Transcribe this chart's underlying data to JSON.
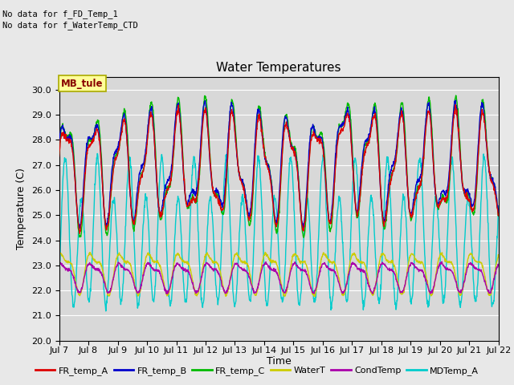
{
  "title": "Water Temperatures",
  "ylabel": "Temperature (C)",
  "xlabel": "Time",
  "x_tick_labels": [
    "Jul 7",
    "Jul 8",
    "Jul 9",
    "Jul 10",
    "Jul 11",
    "Jul 12",
    "Jul 13",
    "Jul 14",
    "Jul 15",
    "Jul 16",
    "Jul 17",
    "Jul 18",
    "Jul 19",
    "Jul 20",
    "Jul 21",
    "Jul 22"
  ],
  "ylim": [
    20.0,
    30.5
  ],
  "yticks": [
    20.0,
    21.0,
    22.0,
    23.0,
    24.0,
    25.0,
    26.0,
    27.0,
    28.0,
    29.0,
    30.0
  ],
  "background_color": "#d8d8d8",
  "fig_background": "#e8e8e8",
  "annotation_lines": [
    "No data for f_FD_Temp_1",
    "No data for f_WaterTemp_CTD"
  ],
  "mb_tule_label": "MB_tule",
  "legend_entries": [
    "FR_temp_A",
    "FR_temp_B",
    "FR_temp_C",
    "WaterT",
    "CondTemp",
    "MDTemp_A"
  ],
  "line_colors": [
    "#dd0000",
    "#0000cc",
    "#00bb00",
    "#cccc00",
    "#aa00aa",
    "#00cccc"
  ],
  "n_days": 15,
  "points_per_day": 96
}
